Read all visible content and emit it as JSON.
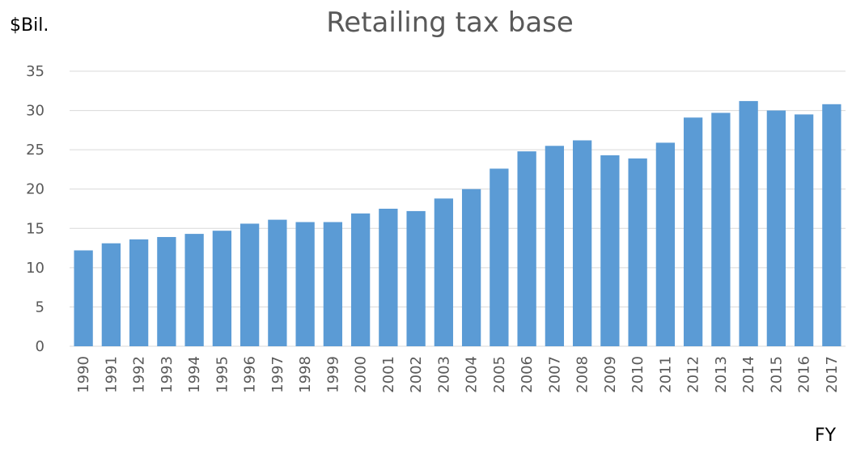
{
  "chart_data": {
    "type": "bar",
    "title": "Retailing tax base",
    "ylabel": "$Bil.",
    "xlabel": "FY",
    "ylim": [
      0,
      35
    ],
    "yticks": [
      0,
      5,
      10,
      15,
      20,
      25,
      30,
      35
    ],
    "grid": true,
    "legend": "none",
    "bar_color": "#5b9bd5",
    "grid_color": "#d9d9d9",
    "categories": [
      "1990",
      "1991",
      "1992",
      "1993",
      "1994",
      "1995",
      "1996",
      "1997",
      "1998",
      "1999",
      "2000",
      "2001",
      "2002",
      "2003",
      "2004",
      "2005",
      "2006",
      "2007",
      "2008",
      "2009",
      "2010",
      "2011",
      "2012",
      "2013",
      "2014",
      "2015",
      "2016",
      "2017"
    ],
    "values": [
      12.2,
      13.1,
      13.6,
      13.9,
      14.3,
      14.7,
      15.6,
      16.1,
      15.8,
      15.8,
      16.9,
      17.5,
      17.2,
      18.8,
      20.0,
      22.6,
      24.8,
      25.5,
      26.2,
      24.3,
      23.9,
      25.9,
      29.1,
      29.7,
      31.2,
      30.0,
      29.5,
      30.8
    ]
  }
}
